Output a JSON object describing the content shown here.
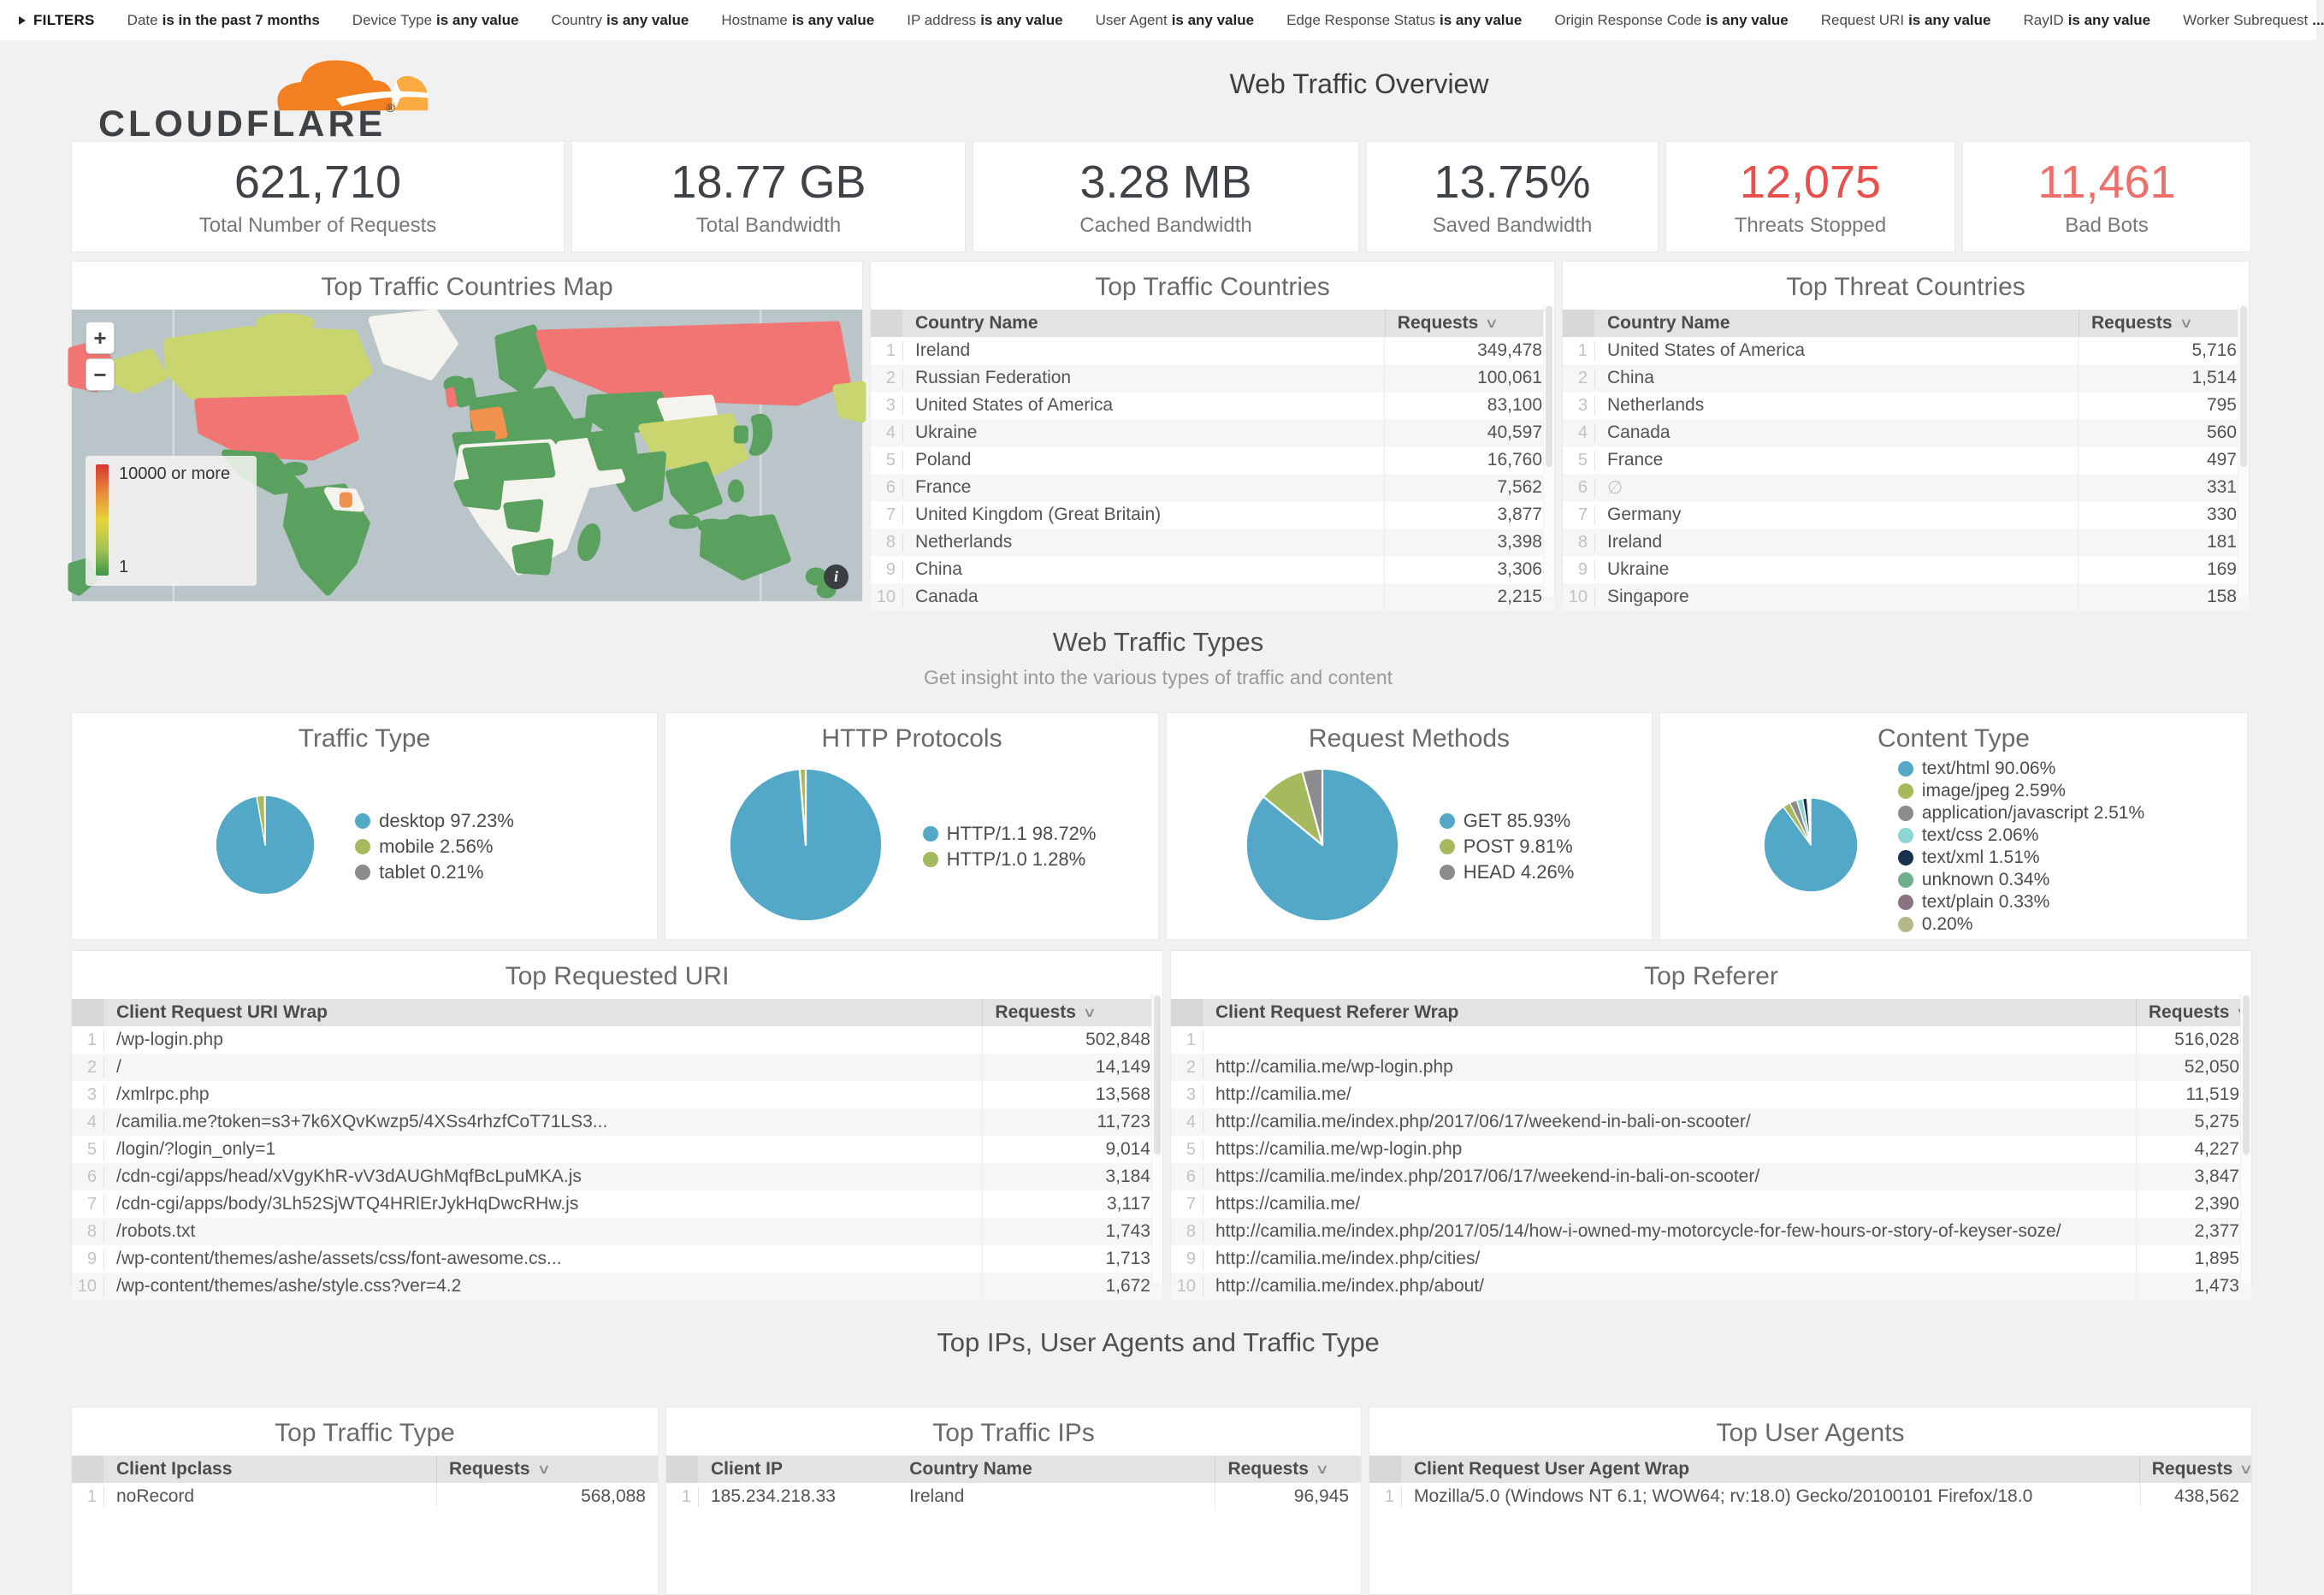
{
  "filters": {
    "toggle_label": "FILTERS",
    "items": [
      {
        "field": "Date",
        "value": "is in the past 7 months"
      },
      {
        "field": "Device Type",
        "value": "is any value"
      },
      {
        "field": "Country",
        "value": "is any value"
      },
      {
        "field": "Hostname",
        "value": "is any value"
      },
      {
        "field": "IP address",
        "value": "is any value"
      },
      {
        "field": "User Agent",
        "value": "is any value"
      },
      {
        "field": "Edge Response Status",
        "value": "is any value"
      },
      {
        "field": "Origin Response Code",
        "value": "is any value"
      },
      {
        "field": "Request URI",
        "value": "is any value"
      },
      {
        "field": "RayID",
        "value": "is any value"
      },
      {
        "field": "Worker Subrequest",
        "value": "..."
      }
    ]
  },
  "header": {
    "brand": "CLOUDFLARE",
    "registered": "®",
    "title": "Web Traffic Overview"
  },
  "stats": [
    {
      "value": "621,710",
      "label": "Total Number of Requests"
    },
    {
      "value": "18.77 GB",
      "label": "Total Bandwidth"
    },
    {
      "value": "3.28 MB",
      "label": "Cached Bandwidth"
    },
    {
      "value": "13.75%",
      "label": "Saved Bandwidth"
    },
    {
      "value": "12,075",
      "label": "Threats Stopped",
      "color": "#e94f4b"
    },
    {
      "value": "11,461",
      "label": "Bad Bots",
      "color": "#ef6e69"
    }
  ],
  "map": {
    "title": "Top Traffic Countries Map",
    "zoom_in": "+",
    "zoom_out": "−",
    "legend_max": "10000 or more",
    "legend_min": "1",
    "info": "i"
  },
  "sections": {
    "traffic_types": {
      "title": "Web Traffic Types",
      "subtitle": "Get insight into the various types of traffic and content"
    },
    "bottom": {
      "title": "Top IPs, User Agents and Traffic Type"
    }
  },
  "tables": {
    "traffic_countries": {
      "title": "Top Traffic Countries",
      "columns": [
        "Country Name",
        "Requests"
      ],
      "rows": [
        [
          "Ireland",
          "349,478"
        ],
        [
          "Russian Federation",
          "100,061"
        ],
        [
          "United States of America",
          "83,100"
        ],
        [
          "Ukraine",
          "40,597"
        ],
        [
          "Poland",
          "16,760"
        ],
        [
          "France",
          "7,562"
        ],
        [
          "United Kingdom (Great Britain)",
          "3,877"
        ],
        [
          "Netherlands",
          "3,398"
        ],
        [
          "China",
          "3,306"
        ],
        [
          "Canada",
          "2,215"
        ]
      ]
    },
    "threat_countries": {
      "title": "Top Threat Countries",
      "columns": [
        "Country Name",
        "Requests"
      ],
      "rows": [
        [
          "United States of America",
          "5,716"
        ],
        [
          "China",
          "1,514"
        ],
        [
          "Netherlands",
          "795"
        ],
        [
          "Canada",
          "560"
        ],
        [
          "France",
          "497"
        ],
        [
          "∅",
          "331"
        ],
        [
          "Germany",
          "330"
        ],
        [
          "Ireland",
          "181"
        ],
        [
          "Ukraine",
          "169"
        ],
        [
          "Singapore",
          "158"
        ]
      ]
    },
    "top_uri": {
      "title": "Top Requested URI",
      "columns": [
        "Client Request URI Wrap",
        "Requests"
      ],
      "rows": [
        [
          "/wp-login.php",
          "502,848"
        ],
        [
          "/",
          "14,149"
        ],
        [
          "/xmlrpc.php",
          "13,568"
        ],
        [
          "/camilia.me?token=s3+7k6XQvKwzp5/4XSs4rhzfCoT71LS3...",
          "11,723"
        ],
        [
          "/login/?login_only=1",
          "9,014"
        ],
        [
          "/cdn-cgi/apps/head/xVgyKhR-vV3dAUGhMqfBcLpuMKA.js",
          "3,184"
        ],
        [
          "/cdn-cgi/apps/body/3Lh52SjWTQ4HRlErJykHqDwcRHw.js",
          "3,117"
        ],
        [
          "/robots.txt",
          "1,743"
        ],
        [
          "/wp-content/themes/ashe/assets/css/font-awesome.cs...",
          "1,713"
        ],
        [
          "/wp-content/themes/ashe/style.css?ver=4.2",
          "1,672"
        ]
      ]
    },
    "top_referer": {
      "title": "Top Referer",
      "columns": [
        "Client Request Referer Wrap",
        "Requests"
      ],
      "rows": [
        [
          "",
          "516,028"
        ],
        [
          "http://camilia.me/wp-login.php",
          "52,050"
        ],
        [
          "http://camilia.me/",
          "11,519"
        ],
        [
          "http://camilia.me/index.php/2017/06/17/weekend-in-bali-on-scooter/",
          "5,275"
        ],
        [
          "https://camilia.me/wp-login.php",
          "4,227"
        ],
        [
          "https://camilia.me/index.php/2017/06/17/weekend-in-bali-on-scooter/",
          "3,847"
        ],
        [
          "https://camilia.me/",
          "2,390"
        ],
        [
          "http://camilia.me/index.php/2017/05/14/how-i-owned-my-motorcycle-for-few-hours-or-story-of-keyser-soze/",
          "2,377"
        ],
        [
          "http://camilia.me/index.php/cities/",
          "1,895"
        ],
        [
          "http://camilia.me/index.php/about/",
          "1,473"
        ]
      ]
    },
    "top_traffic_type": {
      "title": "Top Traffic Type",
      "columns": [
        "Client Ipclass",
        "Requests"
      ],
      "rows": [
        [
          "noRecord",
          "568,088"
        ]
      ]
    },
    "top_traffic_ips": {
      "title": "Top Traffic IPs",
      "columns": [
        "Client IP",
        "Country Name",
        "Requests"
      ],
      "rows": [
        [
          "185.234.218.33",
          "Ireland",
          "96,945"
        ]
      ]
    },
    "top_user_agents": {
      "title": "Top User Agents",
      "columns": [
        "Client Request User Agent Wrap",
        "Requests"
      ],
      "rows": [
        [
          "Mozilla/5.0 (Windows NT 6.1; WOW64; rv:18.0) Gecko/20100101 Firefox/18.0",
          "438,562"
        ]
      ]
    }
  },
  "chart_data": [
    {
      "type": "pie",
      "title": "Traffic Type",
      "legend_position": "right",
      "series": [
        {
          "label": "desktop",
          "pct": "97.23",
          "color": "#54a8c7"
        },
        {
          "label": "mobile",
          "pct": "2.56",
          "color": "#a4ba5d"
        },
        {
          "label": "tablet",
          "pct": "0.21",
          "color": "#8c8c8c"
        }
      ]
    },
    {
      "type": "pie",
      "title": "HTTP Protocols",
      "legend_position": "right",
      "series": [
        {
          "label": "HTTP/1.1",
          "pct": "98.72",
          "color": "#54a8c7"
        },
        {
          "label": "HTTP/1.0",
          "pct": "1.28",
          "color": "#a4ba5d"
        }
      ]
    },
    {
      "type": "pie",
      "title": "Request Methods",
      "legend_position": "right",
      "series": [
        {
          "label": "GET",
          "pct": "85.93",
          "color": "#54a8c7"
        },
        {
          "label": "POST",
          "pct": "9.81",
          "color": "#a4ba5d"
        },
        {
          "label": "HEAD",
          "pct": "4.26",
          "color": "#8c8c8c"
        }
      ]
    },
    {
      "type": "pie",
      "title": "Content Type",
      "legend_position": "right",
      "series": [
        {
          "label": "text/html",
          "pct": "90.06",
          "color": "#54a8c7"
        },
        {
          "label": "image/jpeg",
          "pct": "2.59",
          "color": "#a4ba5d"
        },
        {
          "label": "application/javascript",
          "pct": "2.51",
          "color": "#8c8c8c"
        },
        {
          "label": "text/css",
          "pct": "2.06",
          "color": "#8bd6d2"
        },
        {
          "label": "text/xml",
          "pct": "1.51",
          "color": "#17304d"
        },
        {
          "label": "unknown",
          "pct": "0.34",
          "color": "#6faf8f"
        },
        {
          "label": "text/plain",
          "pct": "0.33",
          "color": "#8a7484"
        },
        {
          "label": "",
          "pct": "0.20",
          "color": "#b5b98a"
        }
      ]
    }
  ]
}
